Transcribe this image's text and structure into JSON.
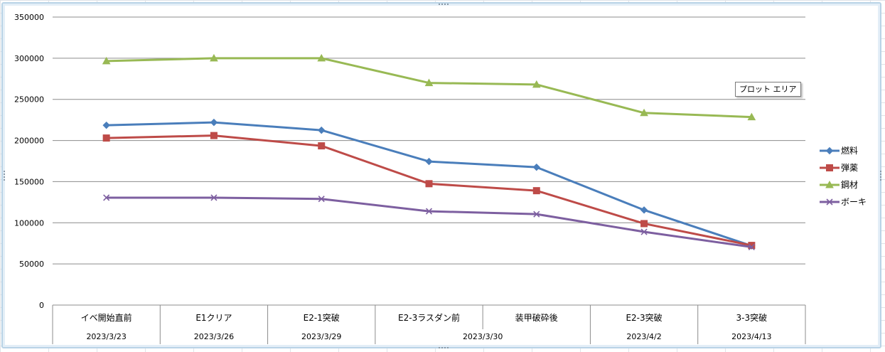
{
  "tooltip": "プロット エリア",
  "chart_data": {
    "type": "line",
    "categories": [
      [
        "イベ開始直前",
        "2023/3/23"
      ],
      [
        "E1クリア",
        "2023/3/26"
      ],
      [
        "E2-1突破",
        "2023/3/29"
      ],
      [
        "E2-3ラスダン前",
        "2023/3/30"
      ],
      [
        "装甲破砕後",
        "2023/3/30"
      ],
      [
        "E2-3突破",
        "2023/4/2"
      ],
      [
        "3-3突破",
        "2023/4/13"
      ]
    ],
    "category_groups": [
      {
        "label": "2023/3/23",
        "span": [
          0,
          0
        ]
      },
      {
        "label": "2023/3/26",
        "span": [
          1,
          1
        ]
      },
      {
        "label": "2023/3/29",
        "span": [
          2,
          2
        ]
      },
      {
        "label": "2023/3/30",
        "span": [
          3,
          4
        ]
      },
      {
        "label": "2023/4/2",
        "span": [
          5,
          5
        ]
      },
      {
        "label": "2023/4/13",
        "span": [
          6,
          6
        ]
      }
    ],
    "series": [
      {
        "name": "燃料",
        "color": "#4a7ebb",
        "marker": "diamond",
        "values": [
          218500,
          222000,
          212500,
          174500,
          167500,
          115500,
          72000
        ]
      },
      {
        "name": "弾薬",
        "color": "#be4b48",
        "marker": "square",
        "values": [
          203000,
          206000,
          193500,
          147500,
          139000,
          99000,
          72500
        ]
      },
      {
        "name": "鋼材",
        "color": "#98b954",
        "marker": "triangle",
        "values": [
          296500,
          300000,
          300000,
          270000,
          268000,
          233500,
          228500
        ]
      },
      {
        "name": "ボーキ",
        "color": "#7d5fa0",
        "marker": "x",
        "values": [
          130500,
          130500,
          129000,
          114000,
          110500,
          89000,
          70500
        ]
      }
    ],
    "ylim": [
      0,
      350000
    ],
    "yticks": [
      0,
      50000,
      100000,
      150000,
      200000,
      250000,
      300000,
      350000
    ],
    "grid": true,
    "legend": "right"
  }
}
